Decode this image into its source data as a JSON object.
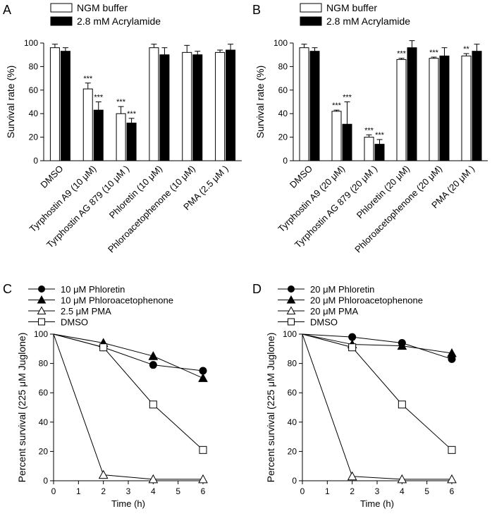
{
  "chart_data": [
    {
      "panel_label": "A",
      "type": "bar",
      "ylabel": "Survival rate (%)",
      "ylim": [
        0,
        100
      ],
      "yticks": [
        0,
        20,
        40,
        60,
        80,
        100
      ],
      "categories": [
        "DMSO",
        "Tyrphostin A9 (10 μM)",
        "Tyrphostin AG 879 (10 μM )",
        "Phloretin  (10 μM)",
        "Phloroacetophenone (10 μM)",
        "PMA (2.5 μM )"
      ],
      "series": [
        {
          "name": "NGM buffer",
          "color": "#ffffff",
          "values": [
            96,
            61,
            40,
            96,
            92,
            92
          ],
          "errors": [
            3,
            5,
            6,
            3,
            6,
            2
          ],
          "sig": [
            "",
            "***",
            "***",
            "",
            "",
            ""
          ]
        },
        {
          "name": "2.8 mM Acrylamide",
          "color": "#000000",
          "values": [
            93,
            43,
            32,
            90,
            90,
            94
          ],
          "errors": [
            3,
            7,
            4,
            6,
            3,
            5
          ],
          "sig": [
            "",
            "***",
            "***",
            "",
            "",
            ""
          ]
        }
      ]
    },
    {
      "panel_label": "B",
      "type": "bar",
      "ylabel": "Survival rate (%)",
      "ylim": [
        0,
        100
      ],
      "yticks": [
        0,
        20,
        40,
        60,
        80,
        100
      ],
      "categories": [
        "DMSO",
        "Tyrphostin A9 (20 μM)",
        "Tyrphostin AG 879 (20 μM )",
        "Phloretin  (20 μM)",
        "Phloroacetophenone (20 μM)",
        "PMA (20 μM )"
      ],
      "series": [
        {
          "name": "NGM buffer",
          "color": "#ffffff",
          "values": [
            96,
            42,
            20,
            86,
            87,
            89
          ],
          "errors": [
            3,
            1,
            2,
            1,
            1,
            2
          ],
          "sig": [
            "",
            "***",
            "***",
            "***",
            "***",
            "**"
          ]
        },
        {
          "name": "2.8 mM Acrylamide",
          "color": "#000000",
          "values": [
            93,
            31,
            14,
            96,
            89,
            93
          ],
          "errors": [
            3,
            19,
            4,
            6,
            7,
            6
          ],
          "sig": [
            "",
            "***",
            "***",
            "",
            "",
            ""
          ]
        }
      ]
    },
    {
      "panel_label": "C",
      "type": "line",
      "xlabel": "Time (h)",
      "ylabel": "Percent survival (225 μM Juglone)",
      "xlim": [
        0,
        6
      ],
      "ylim": [
        0,
        100
      ],
      "xticks": [
        0,
        1,
        2,
        3,
        4,
        5,
        6
      ],
      "yticks": [
        0,
        20,
        40,
        60,
        80,
        100
      ],
      "x": [
        0,
        2,
        4,
        6
      ],
      "series": [
        {
          "name": "10 μM Phloretin",
          "marker": "circle",
          "values": [
            100,
            91,
            79,
            75
          ]
        },
        {
          "name": "10 μM Phloroacetophenone",
          "marker": "triangle",
          "values": [
            100,
            94,
            85,
            70
          ]
        },
        {
          "name": "2.5 μM PMA",
          "marker": "triangle-open",
          "values": [
            100,
            4,
            1,
            1
          ]
        },
        {
          "name": "DMSO",
          "marker": "square-open",
          "values": [
            100,
            91,
            52,
            21
          ]
        }
      ]
    },
    {
      "panel_label": "D",
      "type": "line",
      "xlabel": "Time (h)",
      "ylabel": "Percent survival (225 μM Juglone)",
      "xlim": [
        0,
        6
      ],
      "ylim": [
        0,
        100
      ],
      "xticks": [
        0,
        1,
        2,
        3,
        4,
        5,
        6
      ],
      "yticks": [
        0,
        20,
        40,
        60,
        80,
        100
      ],
      "x": [
        0,
        2,
        4,
        6
      ],
      "series": [
        {
          "name": "20 μM Phloretin",
          "marker": "circle",
          "values": [
            100,
            98,
            94,
            83
          ]
        },
        {
          "name": "20 μM Phloroacetophenone",
          "marker": "triangle",
          "values": [
            100,
            93,
            92,
            87
          ]
        },
        {
          "name": "20 μM PMA",
          "marker": "triangle-open",
          "values": [
            100,
            3,
            1,
            1
          ]
        },
        {
          "name": "DMSO",
          "marker": "square-open",
          "values": [
            100,
            91,
            52,
            21
          ]
        }
      ]
    }
  ]
}
